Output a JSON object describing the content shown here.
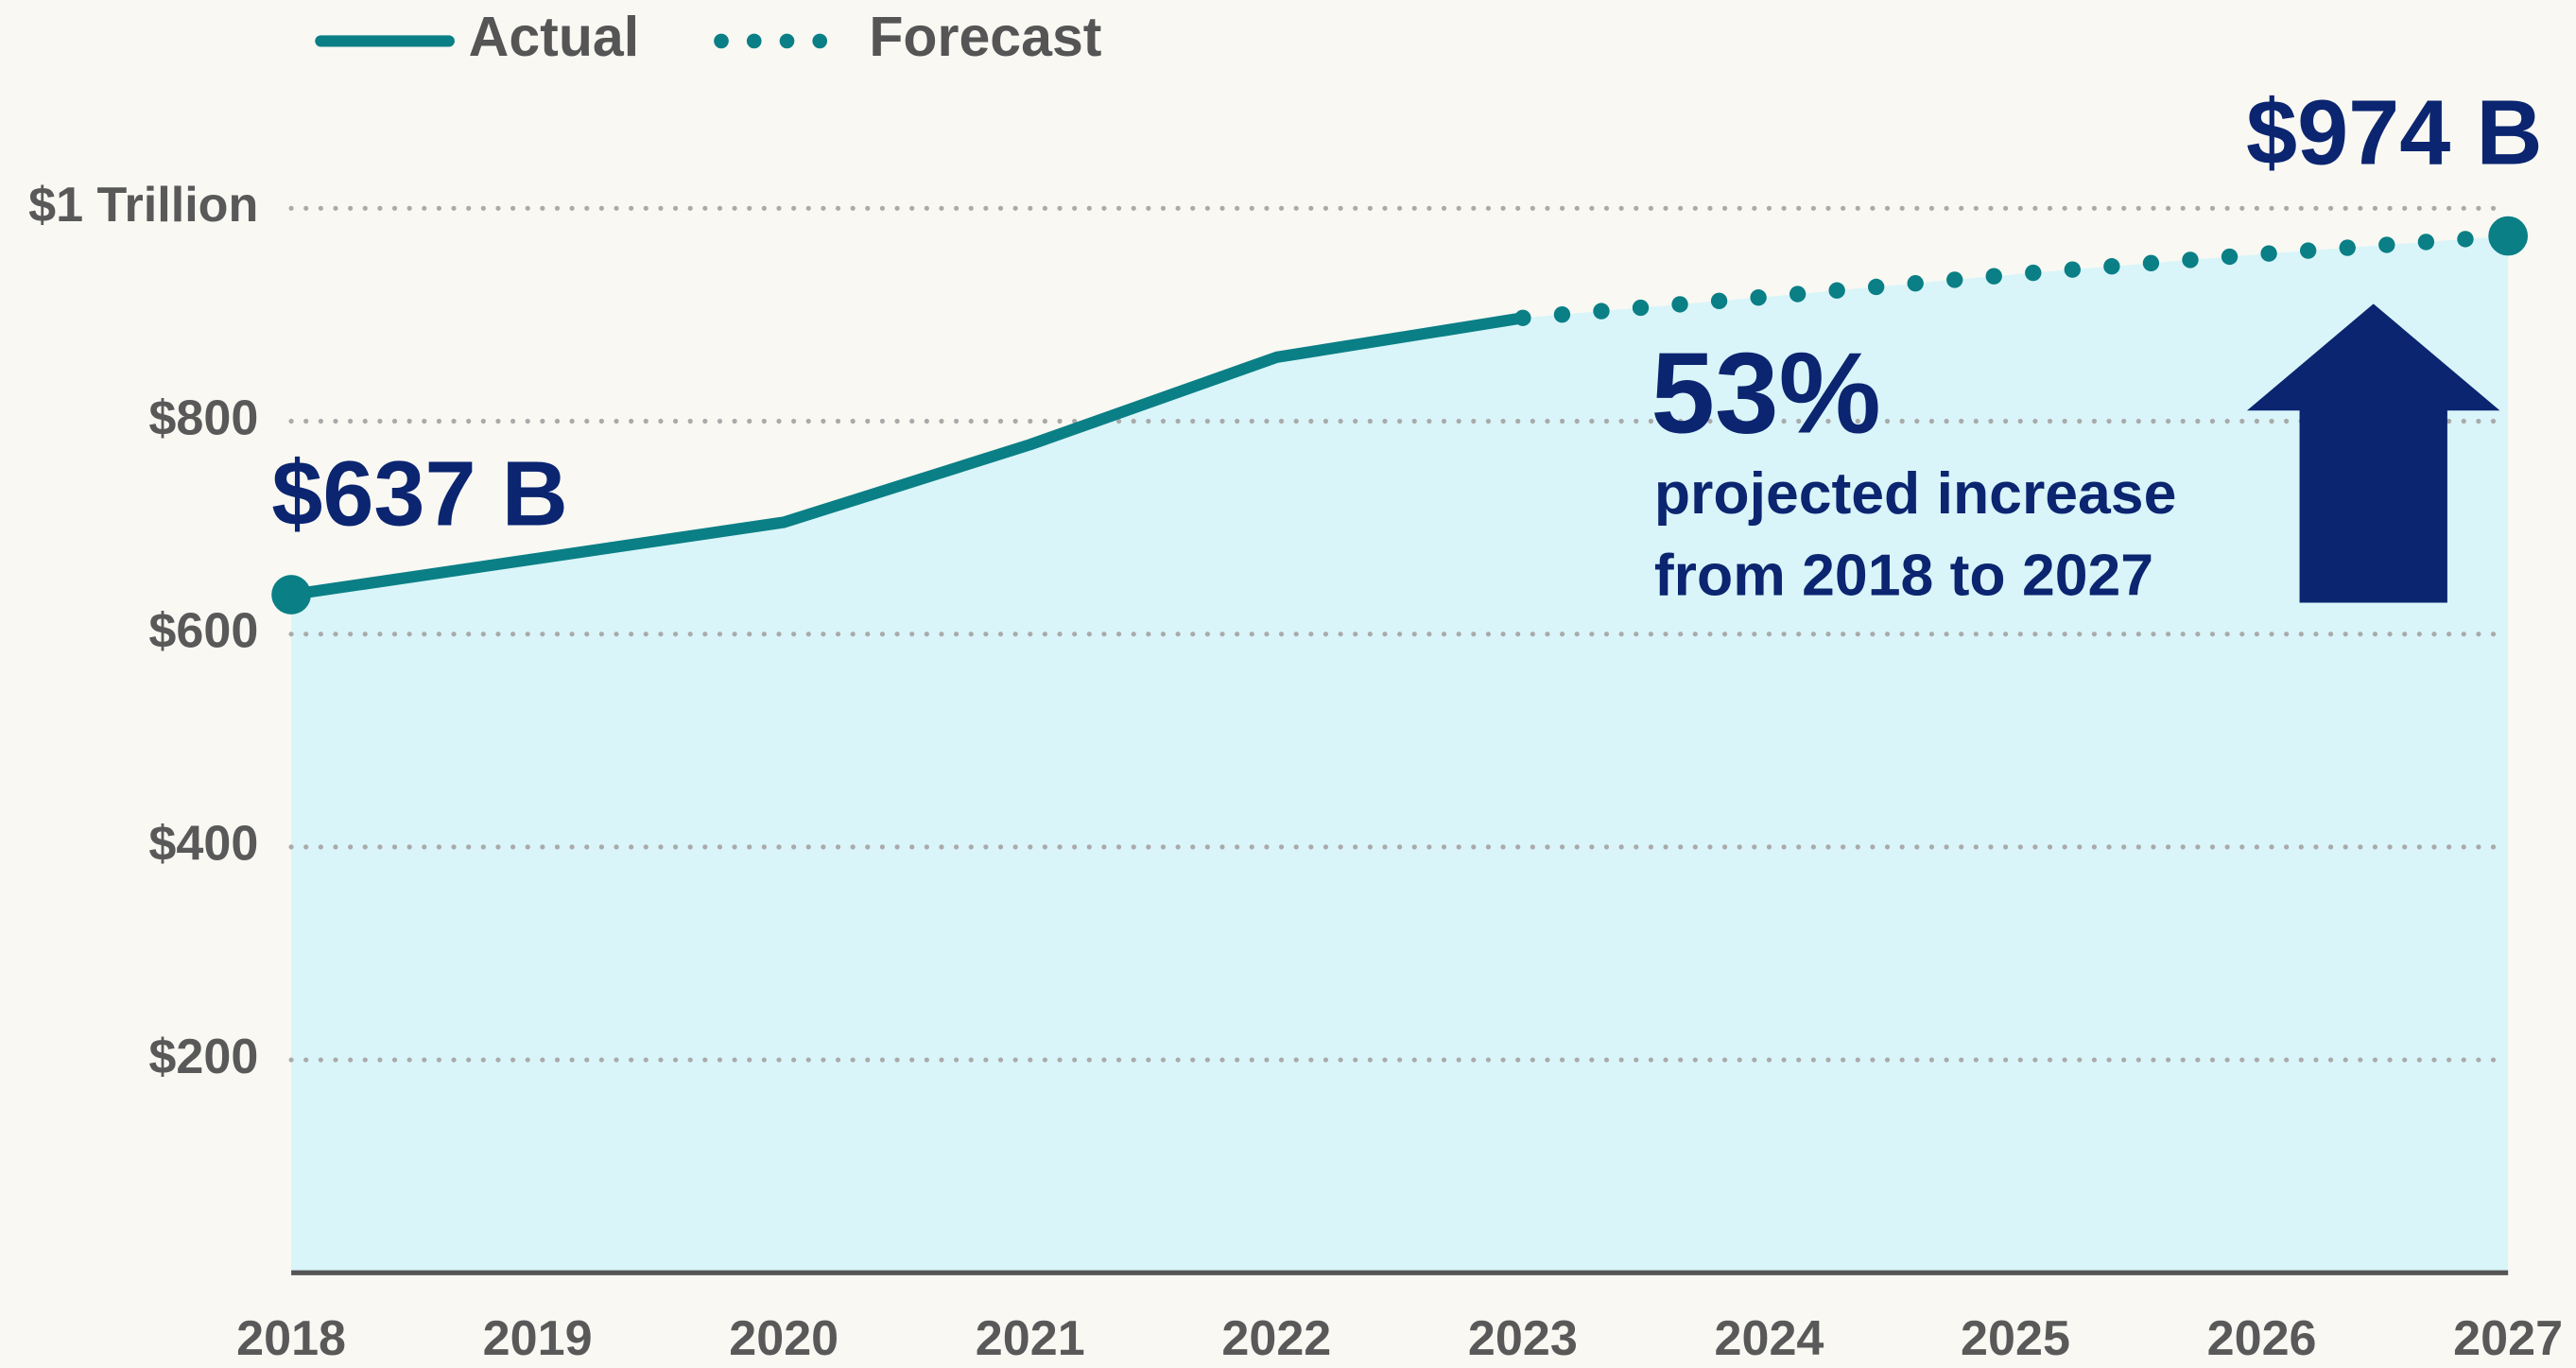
{
  "chart_data": {
    "type": "line",
    "categories": [
      "2018",
      "2019",
      "2020",
      "2021",
      "2022",
      "2023",
      "2024",
      "2025",
      "2026",
      "2027"
    ],
    "series": [
      {
        "name": "Actual",
        "color": "#0a7f86",
        "style": "solid",
        "values": [
          637,
          671,
          705,
          778,
          860,
          897,
          null,
          null,
          null,
          null
        ],
        "value_labels": [
          "$637 B",
          null,
          null,
          null,
          null,
          null,
          null,
          null,
          null,
          null
        ]
      },
      {
        "name": "Forecast",
        "color": "#0a7f86",
        "style": "dotted",
        "values": [
          null,
          null,
          null,
          null,
          null,
          897,
          917,
          938,
          957,
          974
        ],
        "value_labels": [
          null,
          null,
          null,
          null,
          null,
          null,
          null,
          null,
          null,
          "$974 B"
        ]
      }
    ],
    "area_color": "#d9f5f9",
    "ylim": [
      0,
      1100
    ],
    "yticks": [
      {
        "value": 200,
        "label": "$200"
      },
      {
        "value": 400,
        "label": "$400"
      },
      {
        "value": 600,
        "label": "$600"
      },
      {
        "value": 800,
        "label": "$800"
      },
      {
        "value": 1000,
        "label": "$1 Trillion"
      }
    ],
    "grid": true,
    "legend": "top-left",
    "annotation": {
      "value": "53%",
      "text": [
        "projected increase",
        "from 2018 to 2027"
      ]
    }
  }
}
